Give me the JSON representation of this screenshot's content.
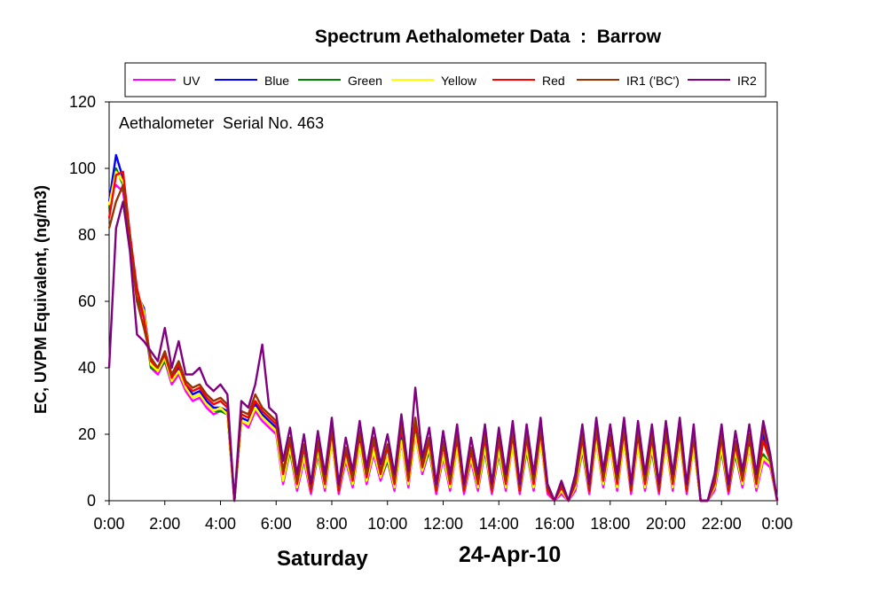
{
  "chart_data": {
    "type": "line",
    "title": "Spectrum Aethalometer Data  :  Barrow",
    "annotation": "Aethalometer  Serial No. 463",
    "ylabel": "EC, UVPM Equivalent, (ng/m3)",
    "xlabel_day": "Saturday",
    "xlabel_date": "24-Apr-10",
    "ylim": [
      0,
      120
    ],
    "yticks": [
      "0",
      "20",
      "40",
      "60",
      "80",
      "100",
      "120"
    ],
    "xlim": [
      0,
      24
    ],
    "xticks": [
      "0:00",
      "2:00",
      "4:00",
      "6:00",
      "8:00",
      "10:00",
      "12:00",
      "14:00",
      "16:00",
      "18:00",
      "20:00",
      "22:00",
      "0:00"
    ],
    "legend_position": "top",
    "grid": false,
    "x": [
      0,
      0.25,
      0.5,
      0.75,
      1,
      1.25,
      1.5,
      1.75,
      2,
      2.25,
      2.5,
      2.75,
      3,
      3.25,
      3.5,
      3.75,
      4,
      4.25,
      4.5,
      4.75,
      5,
      5.25,
      5.5,
      5.75,
      6,
      6.25,
      6.5,
      6.75,
      7,
      7.25,
      7.5,
      7.75,
      8,
      8.25,
      8.5,
      8.75,
      9,
      9.25,
      9.5,
      9.75,
      10,
      10.25,
      10.5,
      10.75,
      11,
      11.25,
      11.5,
      11.75,
      12,
      12.25,
      12.5,
      12.75,
      13,
      13.25,
      13.5,
      13.75,
      14,
      14.25,
      14.5,
      14.75,
      15,
      15.25,
      15.5,
      15.75,
      16,
      16.25,
      16.5,
      16.75,
      17,
      17.25,
      17.5,
      17.75,
      18,
      18.25,
      18.5,
      18.75,
      19,
      19.25,
      19.5,
      19.75,
      20,
      20.25,
      20.5,
      20.75,
      21,
      21.25,
      21.5,
      21.75,
      22,
      22.25,
      22.5,
      22.75,
      23,
      23.25,
      23.5,
      23.75,
      24
    ],
    "series": [
      {
        "name": "UV",
        "color": "#ff00ff",
        "values": [
          92,
          95,
          93,
          78,
          60,
          55,
          40,
          38,
          42,
          35,
          38,
          33,
          30,
          31,
          28,
          26,
          27,
          26,
          0,
          24,
          22,
          27,
          24,
          22,
          20,
          5,
          15,
          3,
          12,
          2,
          14,
          3,
          18,
          2,
          12,
          4,
          17,
          5,
          14,
          6,
          12,
          3,
          18,
          4,
          20,
          8,
          15,
          2,
          13,
          3,
          16,
          2,
          12,
          3,
          15,
          2,
          14,
          3,
          17,
          2,
          15,
          3,
          18,
          2,
          0,
          2,
          0,
          3,
          15,
          2,
          18,
          4,
          16,
          3,
          18,
          2,
          17,
          3,
          15,
          2,
          17,
          3,
          18,
          2,
          16,
          0,
          0,
          3,
          15,
          2,
          14,
          4,
          16,
          3,
          12,
          10,
          0
        ]
      },
      {
        "name": "Blue",
        "color": "#0000ff",
        "values": [
          90,
          104,
          97,
          80,
          62,
          58,
          41,
          40,
          43,
          37,
          40,
          35,
          32,
          33,
          30,
          28,
          28,
          27,
          0,
          25,
          24,
          29,
          26,
          24,
          22,
          6,
          16,
          4,
          13,
          3,
          15,
          4,
          19,
          3,
          13,
          5,
          18,
          6,
          15,
          7,
          13,
          4,
          19,
          5,
          21,
          9,
          16,
          3,
          14,
          4,
          17,
          3,
          13,
          4,
          16,
          3,
          15,
          4,
          18,
          3,
          16,
          4,
          19,
          3,
          0,
          3,
          0,
          4,
          16,
          3,
          19,
          5,
          17,
          4,
          19,
          3,
          18,
          4,
          16,
          3,
          18,
          4,
          19,
          3,
          17,
          0,
          0,
          4,
          16,
          3,
          15,
          5,
          17,
          4,
          20,
          12,
          0
        ]
      },
      {
        "name": "Green",
        "color": "#008000",
        "values": [
          88,
          100,
          95,
          78,
          61,
          56,
          40,
          39,
          42,
          36,
          39,
          34,
          31,
          32,
          29,
          27,
          27,
          26,
          0,
          24,
          23,
          28,
          25,
          23,
          21,
          6,
          15,
          4,
          13,
          3,
          14,
          4,
          18,
          3,
          13,
          5,
          17,
          6,
          15,
          7,
          12,
          4,
          18,
          5,
          20,
          9,
          15,
          3,
          14,
          4,
          16,
          3,
          13,
          4,
          15,
          3,
          14,
          4,
          17,
          3,
          15,
          4,
          18,
          3,
          0,
          3,
          0,
          4,
          15,
          3,
          18,
          5,
          16,
          4,
          18,
          3,
          17,
          4,
          15,
          3,
          17,
          4,
          18,
          3,
          16,
          0,
          0,
          4,
          15,
          3,
          14,
          5,
          16,
          4,
          14,
          11,
          0
        ]
      },
      {
        "name": "Yellow",
        "color": "#ffff00",
        "values": [
          89,
          99,
          96,
          79,
          63,
          57,
          41,
          39,
          43,
          36,
          39,
          34,
          31,
          32,
          29,
          27,
          28,
          26,
          0,
          24,
          23,
          28,
          25,
          23,
          21,
          6,
          16,
          4,
          13,
          3,
          15,
          4,
          18,
          3,
          13,
          5,
          17,
          6,
          15,
          7,
          13,
          4,
          18,
          5,
          20,
          9,
          16,
          3,
          14,
          4,
          16,
          3,
          13,
          4,
          16,
          3,
          15,
          4,
          17,
          3,
          16,
          4,
          18,
          3,
          0,
          3,
          0,
          4,
          16,
          3,
          18,
          5,
          16,
          4,
          18,
          3,
          17,
          4,
          16,
          3,
          17,
          4,
          18,
          3,
          16,
          0,
          0,
          4,
          16,
          3,
          15,
          5,
          16,
          4,
          13,
          11,
          0
        ]
      },
      {
        "name": "Red",
        "color": "#ff0000",
        "values": [
          85,
          98,
          99,
          80,
          64,
          55,
          42,
          40,
          44,
          37,
          41,
          35,
          33,
          34,
          31,
          29,
          30,
          28,
          0,
          26,
          25,
          30,
          27,
          25,
          23,
          8,
          18,
          5,
          16,
          3,
          17,
          5,
          21,
          3,
          15,
          6,
          20,
          7,
          18,
          8,
          16,
          5,
          22,
          6,
          23,
          10,
          18,
          3,
          17,
          5,
          19,
          3,
          15,
          5,
          19,
          3,
          18,
          5,
          20,
          3,
          19,
          5,
          21,
          3,
          0,
          4,
          0,
          5,
          19,
          3,
          21,
          6,
          19,
          5,
          21,
          3,
          20,
          5,
          19,
          3,
          20,
          5,
          21,
          3,
          19,
          0,
          0,
          5,
          19,
          3,
          17,
          6,
          19,
          5,
          18,
          12,
          0
        ]
      },
      {
        "name": "IR1 ('BC')",
        "color": "#993300",
        "values": [
          82,
          90,
          95,
          78,
          60,
          52,
          43,
          40,
          45,
          38,
          42,
          36,
          34,
          35,
          32,
          30,
          31,
          29,
          0,
          27,
          26,
          32,
          28,
          26,
          24,
          9,
          19,
          6,
          17,
          4,
          18,
          6,
          22,
          4,
          16,
          7,
          21,
          8,
          19,
          9,
          17,
          6,
          23,
          7,
          25,
          11,
          19,
          4,
          18,
          6,
          20,
          4,
          16,
          6,
          20,
          4,
          19,
          6,
          21,
          4,
          20,
          6,
          22,
          4,
          0,
          5,
          0,
          6,
          20,
          4,
          22,
          7,
          20,
          6,
          22,
          4,
          21,
          6,
          20,
          4,
          21,
          6,
          22,
          4,
          20,
          0,
          0,
          6,
          20,
          4,
          18,
          7,
          20,
          6,
          22,
          12,
          0
        ]
      },
      {
        "name": "IR2",
        "color": "#800080",
        "values": [
          40,
          82,
          90,
          75,
          50,
          48,
          45,
          42,
          52,
          40,
          48,
          38,
          38,
          40,
          35,
          33,
          35,
          32,
          0,
          30,
          28,
          35,
          47,
          28,
          26,
          12,
          22,
          8,
          20,
          5,
          21,
          8,
          25,
          5,
          19,
          9,
          24,
          10,
          22,
          11,
          20,
          8,
          26,
          9,
          34,
          13,
          22,
          5,
          21,
          8,
          23,
          5,
          19,
          8,
          23,
          5,
          22,
          8,
          24,
          5,
          23,
          8,
          25,
          5,
          0,
          6,
          0,
          8,
          23,
          5,
          25,
          9,
          23,
          8,
          25,
          5,
          24,
          8,
          23,
          5,
          24,
          8,
          25,
          5,
          23,
          0,
          0,
          8,
          23,
          5,
          21,
          9,
          23,
          8,
          24,
          14,
          0
        ]
      }
    ]
  }
}
